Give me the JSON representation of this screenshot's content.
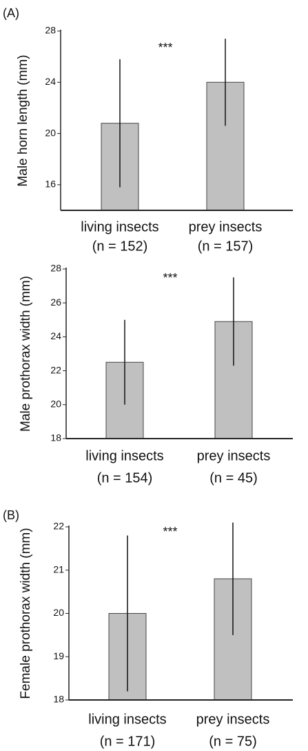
{
  "chart_data": [
    {
      "type": "bar",
      "panel": "(A)",
      "y_label": "Male horn length (mm)",
      "annotation": "***",
      "categories": [
        "living insects",
        "prey insects"
      ],
      "sample_sizes": [
        "(n = 152)",
        "(n = 157)"
      ],
      "values": [
        20.8,
        24.0
      ],
      "errors": [
        5.0,
        3.4
      ],
      "color": "#c0c0c0",
      "ylim": [
        14,
        28
      ],
      "yticks": [
        16,
        20,
        24,
        28
      ]
    },
    {
      "type": "bar",
      "y_label": "Male prothorax width (mm)",
      "annotation": "***",
      "categories": [
        "living insects",
        "prey insects"
      ],
      "sample_sizes": [
        "(n = 154)",
        "(n = 45)"
      ],
      "values": [
        22.5,
        24.9
      ],
      "errors": [
        2.5,
        2.6
      ],
      "color": "#c0c0c0",
      "ylim": [
        18,
        28
      ],
      "yticks": [
        18,
        20,
        22,
        24,
        26,
        28
      ]
    },
    {
      "type": "bar",
      "panel": "(B)",
      "y_label": "Female prothorax width (mm)",
      "annotation": "***",
      "categories": [
        "living insects",
        "prey insects"
      ],
      "sample_sizes": [
        "(n = 171)",
        "(n  = 75)"
      ],
      "values": [
        20.0,
        20.8
      ],
      "errors": [
        1.8,
        1.3
      ],
      "color": "#c0c0c0",
      "ylim": [
        18,
        22
      ],
      "yticks": [
        18,
        19,
        20,
        21,
        22
      ]
    }
  ]
}
